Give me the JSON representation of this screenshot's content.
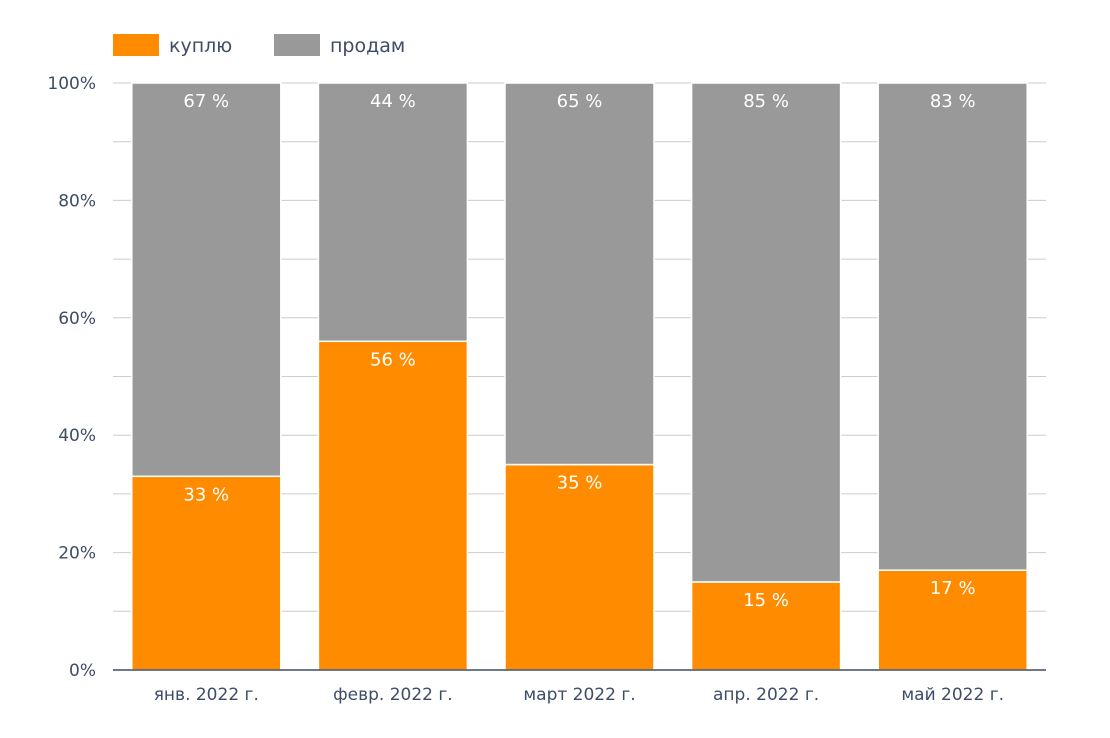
{
  "chart_data": {
    "type": "bar",
    "stacked": true,
    "normalized": true,
    "categories": [
      "янв. 2022 г.",
      "февр. 2022 г.",
      "март 2022 г.",
      "апр. 2022 г.",
      "май 2022 г."
    ],
    "series": [
      {
        "name": "куплю",
        "values": [
          33,
          56,
          35,
          15,
          17
        ],
        "labels": [
          "33 %",
          "56 %",
          "35 %",
          "15 %",
          "17 %"
        ],
        "color": "#FF8C00"
      },
      {
        "name": "продам",
        "values": [
          67,
          44,
          65,
          85,
          83
        ],
        "labels": [
          "67 %",
          "44 %",
          "65 %",
          "85 %",
          "83 %"
        ],
        "color": "#999999"
      }
    ],
    "ylim": [
      0,
      100
    ],
    "yticks": [
      0,
      20,
      40,
      60,
      80,
      100
    ],
    "ytick_labels": [
      "0%",
      "20%",
      "40%",
      "60%",
      "80%",
      "100%"
    ],
    "grid": true,
    "legend_position": "top-left",
    "axis_color": "#3d4d66",
    "grid_color": "#cccccc",
    "label_text_color": "#ffffff",
    "tick_text_color": "#3d4d66"
  }
}
